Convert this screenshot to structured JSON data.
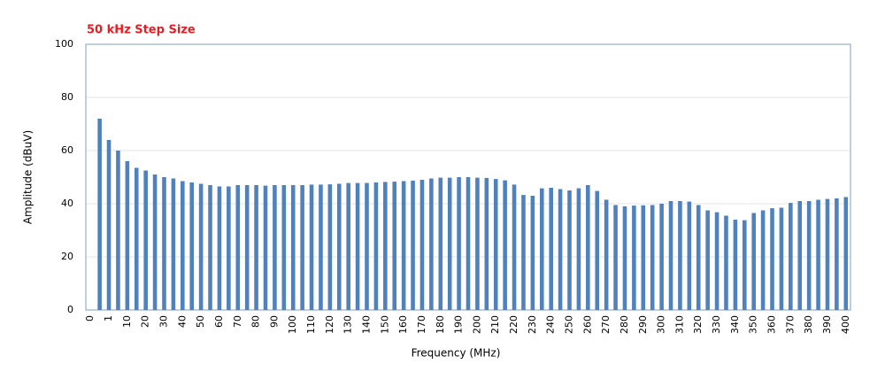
{
  "chart_data": {
    "type": "bar",
    "title": "50 kHz Step Size",
    "x_label": "Frequency (MHz)",
    "y_label": "Amplitude (dBuV)",
    "categories": [
      "0",
      null,
      "1",
      null,
      "10",
      null,
      "20",
      null,
      "30",
      null,
      "40",
      null,
      "50",
      null,
      "60",
      null,
      "70",
      null,
      "80",
      null,
      "90",
      null,
      "100",
      null,
      "110",
      null,
      "120",
      null,
      "130",
      null,
      "140",
      null,
      "150",
      null,
      "160",
      null,
      "170",
      null,
      "180",
      null,
      "190",
      null,
      "200",
      null,
      "210",
      null,
      "220",
      null,
      "230",
      null,
      "240",
      null,
      "250",
      null,
      "260",
      null,
      "270",
      null,
      "280",
      null,
      "290",
      null,
      "300",
      null,
      "310",
      null,
      "320",
      null,
      "330",
      null,
      "340",
      null,
      "350",
      null,
      "360",
      null,
      "370",
      null,
      "380",
      null,
      "390",
      null,
      "400"
    ],
    "values": [
      null,
      72,
      64,
      60,
      56,
      53.5,
      52.5,
      51,
      50,
      49.5,
      48.5,
      48,
      47.5,
      47,
      46.5,
      46.5,
      47,
      47,
      47,
      46.8,
      47,
      47,
      47,
      47,
      47.2,
      47.2,
      47.3,
      47.5,
      47.8,
      47.8,
      47.8,
      48,
      48.2,
      48.3,
      48.5,
      48.7,
      49,
      49.5,
      49.8,
      49.8,
      50,
      50,
      49.8,
      49.7,
      49.3,
      48.8,
      47.2,
      43.3,
      43,
      45.8,
      46,
      45.5,
      45,
      45.8,
      47,
      44.8,
      41.5,
      39.5,
      39,
      39.3,
      39.4,
      39.5,
      40,
      41,
      41,
      40.8,
      39.5,
      37.5,
      36.8,
      35.5,
      34,
      33.8,
      36.5,
      37.5,
      38.3,
      38.5,
      40.3,
      41,
      41,
      41.5,
      41.8,
      42,
      42.5
    ],
    "color": "#4f81bd",
    "ylim": [
      0,
      100
    ],
    "yticks": [
      0,
      20,
      40,
      60,
      80,
      100
    ],
    "grid": true
  }
}
